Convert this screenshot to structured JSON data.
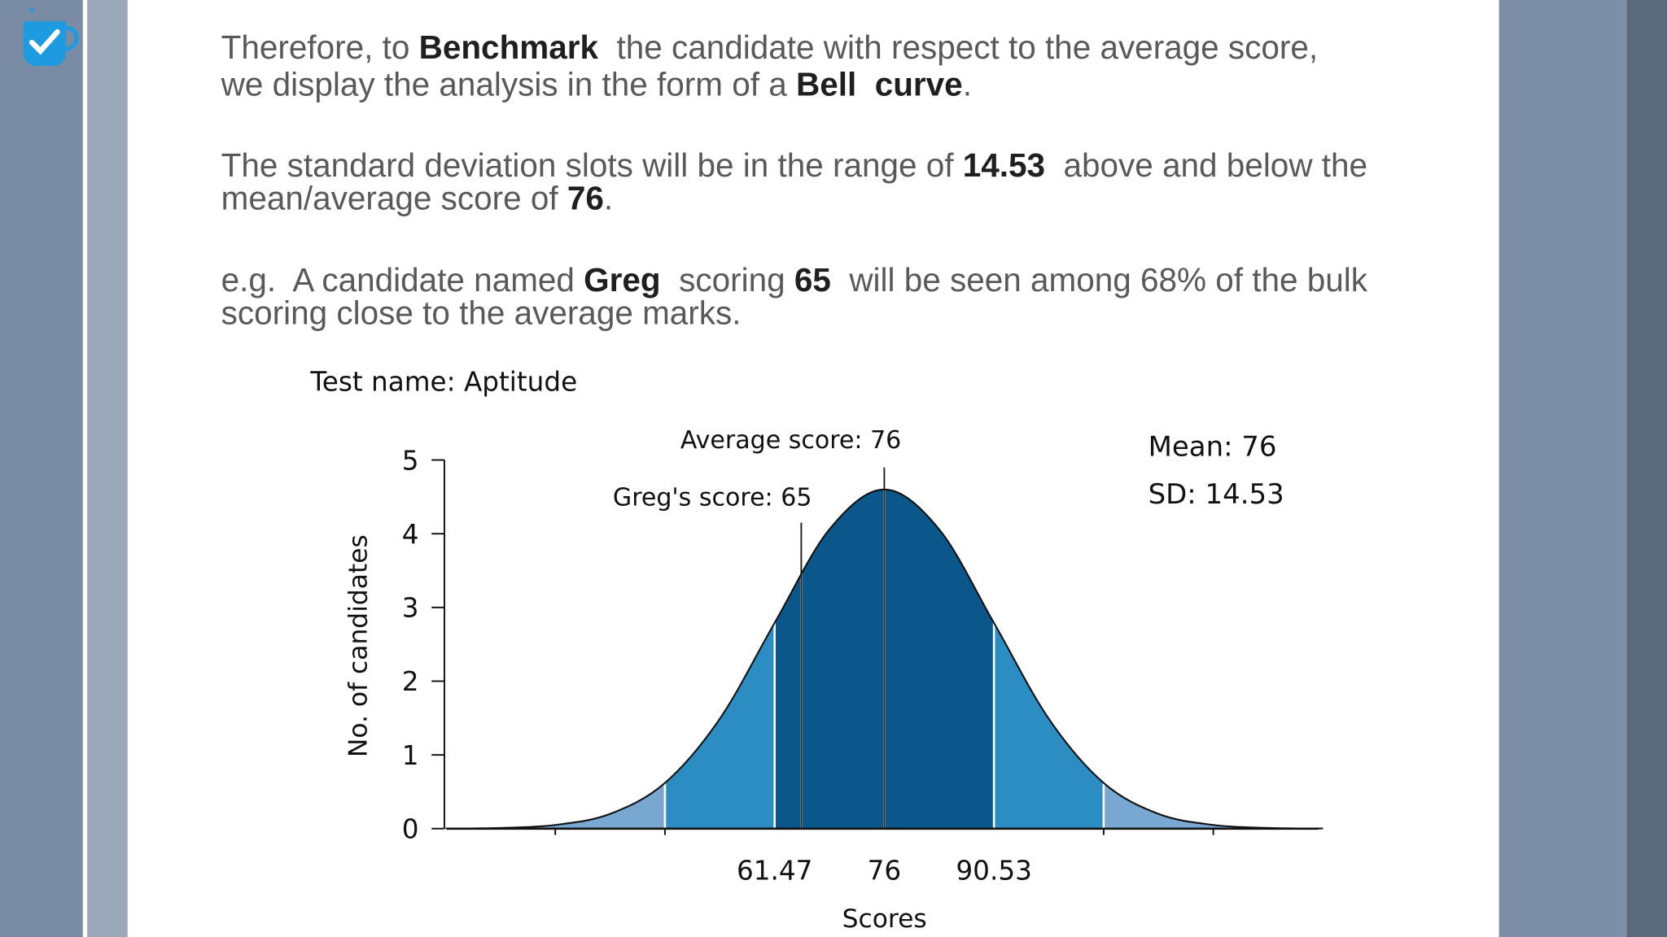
{
  "slide": {
    "paragraphs": [
      {
        "lines": [
          [
            {
              "text": "Therefore, to "
            },
            {
              "text": "Benchmark",
              "bold": true
            },
            {
              "text": "  the candidate with respect to the average score,"
            }
          ],
          [
            {
              "text": "we display the analysis in the form of a "
            },
            {
              "text": "Bell  curve",
              "bold": true
            },
            {
              "text": "."
            }
          ]
        ]
      },
      {
        "lines": [
          [
            {
              "text": "The standard deviation slots will be in the range of "
            },
            {
              "text": "14.53",
              "bold": true
            },
            {
              "text": "  above and below the"
            }
          ],
          [
            {
              "text": "mean/average score of "
            },
            {
              "text": "76",
              "bold": true
            },
            {
              "text": "."
            }
          ]
        ]
      },
      {
        "lines": [
          [
            {
              "text": "e.g.  A candidate named "
            },
            {
              "text": "Greg",
              "bold": true
            },
            {
              "text": "  scoring "
            },
            {
              "text": "65",
              "bold": true
            },
            {
              "text": "  will be seen among 68% of the bulk"
            }
          ],
          [
            {
              "text": "scoring close to the average marks."
            }
          ]
        ]
      }
    ]
  },
  "chart_data": {
    "type": "area",
    "title": "Test name: Aptitude",
    "xlabel": "Scores",
    "ylabel": "No. of candidates",
    "xlim": [
      18,
      133.5
    ],
    "ylim": [
      0,
      5
    ],
    "yticks": [
      0,
      1,
      2,
      3,
      4,
      5
    ],
    "xticks": [
      61.47,
      76,
      90.53
    ],
    "minor_xticks": [
      32.41,
      46.94,
      105.06,
      119.59
    ],
    "x": [
      17.88,
      25.145,
      32.41,
      39.675,
      46.94,
      54.205,
      61.47,
      68.735,
      76,
      83.265,
      90.53,
      97.795,
      105.06,
      112.325,
      119.59,
      126.855,
      134.12
    ],
    "values": [
      0.002,
      0.01,
      0.05,
      0.2,
      0.62,
      1.49,
      2.79,
      4.06,
      4.6,
      4.06,
      2.79,
      1.49,
      0.62,
      0.2,
      0.05,
      0.01,
      0.002
    ],
    "line_color": "#111111",
    "bands": [
      {
        "from": 18,
        "to": 46.94,
        "color": "#78a8d2"
      },
      {
        "from": 46.94,
        "to": 61.47,
        "color": "#2b8dc1"
      },
      {
        "from": 61.47,
        "to": 90.53,
        "color": "#0b578b"
      },
      {
        "from": 90.53,
        "to": 105.06,
        "color": "#2b8dc1"
      },
      {
        "from": 105.06,
        "to": 133.5,
        "color": "#78a8d2"
      }
    ],
    "annotations": [
      {
        "text": "Average score: 76",
        "x": 76
      },
      {
        "text": "Greg's score: 65",
        "x": 65
      }
    ],
    "stats": [
      "Mean: 76",
      "SD: 14.53"
    ]
  }
}
